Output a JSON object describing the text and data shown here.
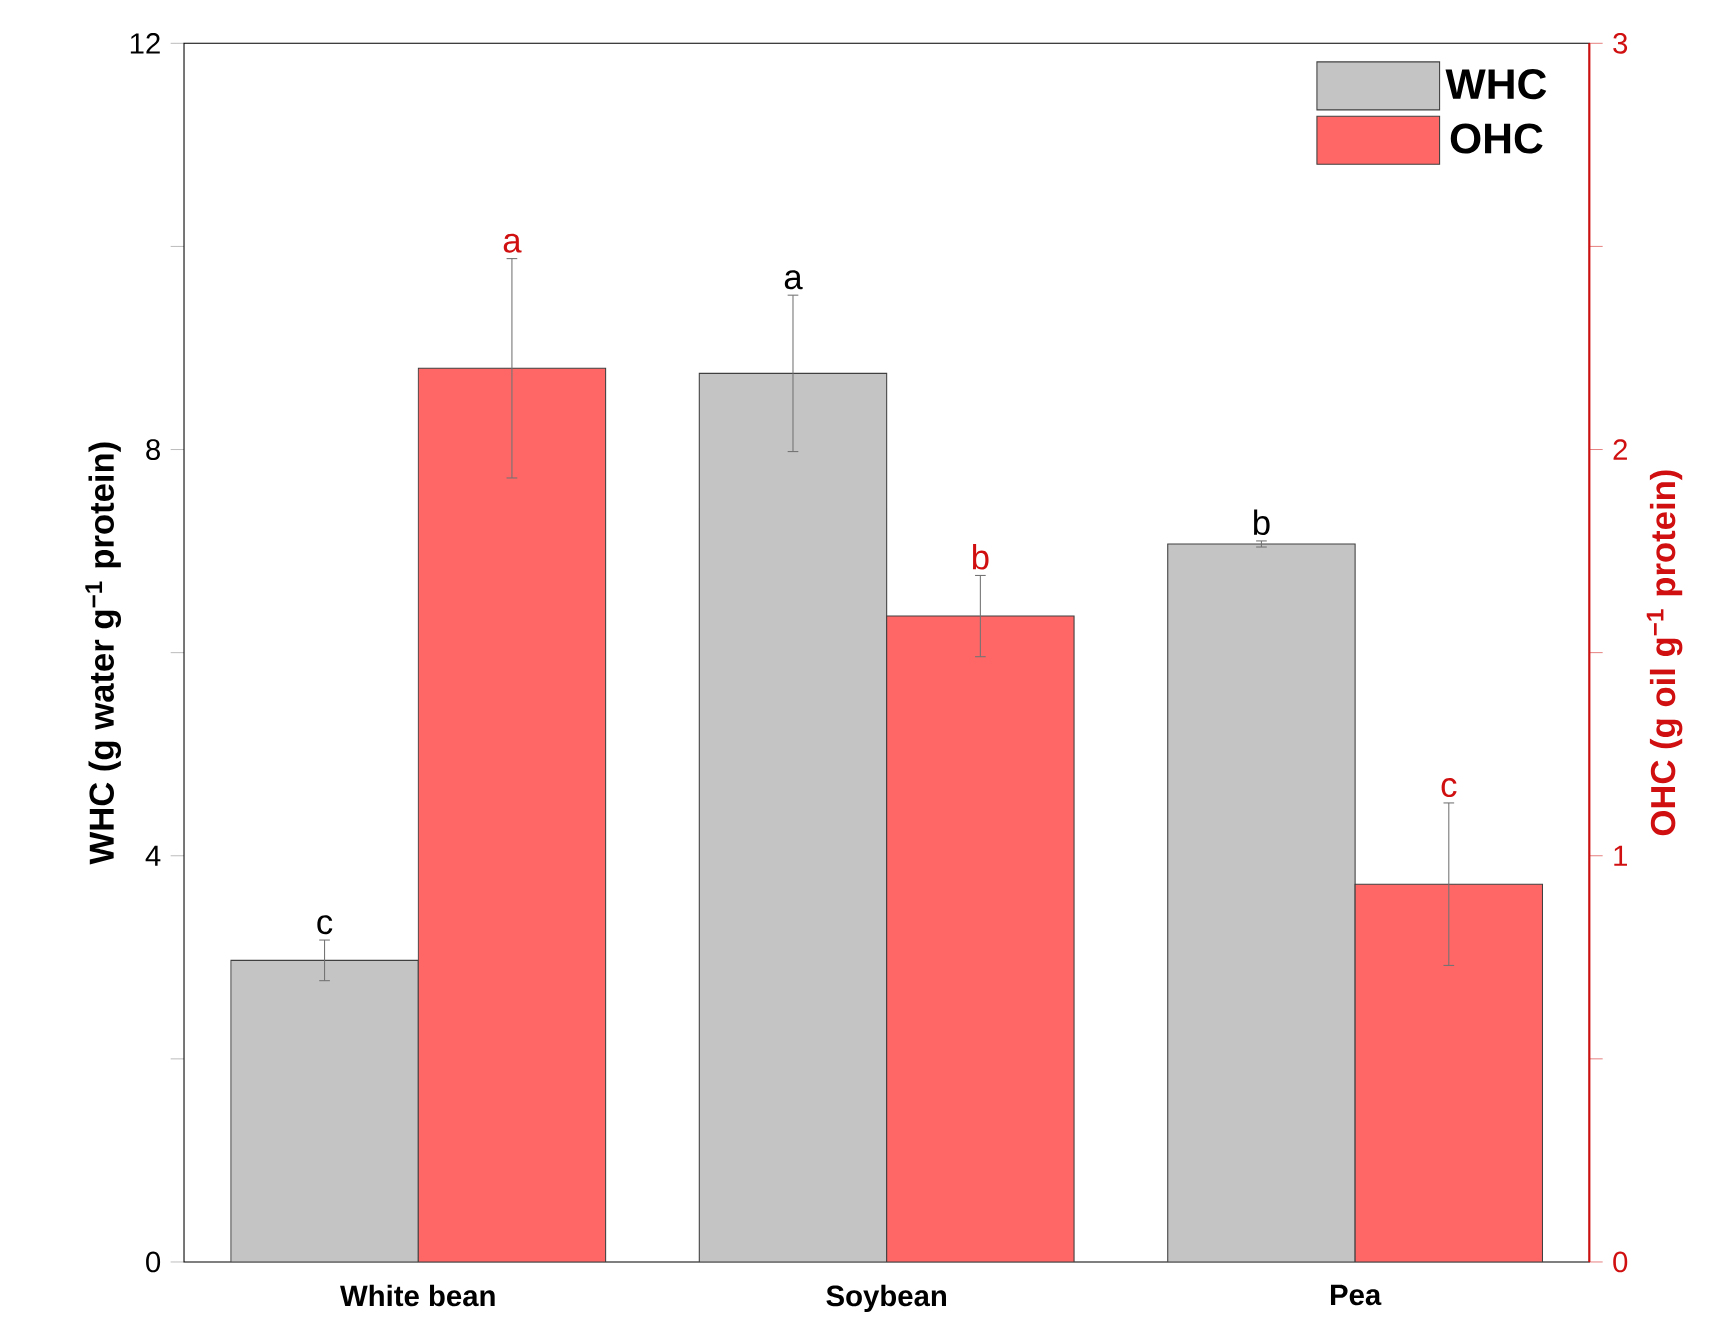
{
  "chart_data": {
    "type": "bar",
    "categories": [
      "White bean",
      "Soybean",
      "Pea"
    ],
    "ylabel": "WHC (g water g$^{−1}$ protein)",
    "y2label": "OHC (g oil g$^{−1}$ protein)",
    "series": [
      {
        "name": "WHC",
        "color": "#c4c4c4",
        "values": [
          2.97,
          8.75,
          7.07
        ],
        "errors": [
          0.2,
          0.77,
          0.03
        ]
      },
      {
        "name": "OHC",
        "color": "#ff6666",
        "axis": "y2",
        "values": [
          2.2,
          1.59,
          0.93
        ],
        "errors": [
          0.27,
          0.1,
          0.2
        ]
      }
    ],
    "ylim": [
      0,
      12
    ],
    "yticks": [
      0,
      {
        "value": 2,
        "label": null
      },
      4,
      {
        "value": 6,
        "label": null
      },
      8,
      {
        "value": 10,
        "label": null
      },
      12
    ],
    "y2lim": [
      0,
      3
    ],
    "y2ticks": [
      0,
      {
        "value": 0.5,
        "label": null
      },
      1,
      {
        "value": 1.5,
        "label": null
      },
      2,
      {
        "value": 2.5,
        "label": null
      },
      3
    ],
    "legend": "top right",
    "annotations": [
      "c",
      "a",
      "b",
      "a",
      "b",
      "c"
    ]
  }
}
